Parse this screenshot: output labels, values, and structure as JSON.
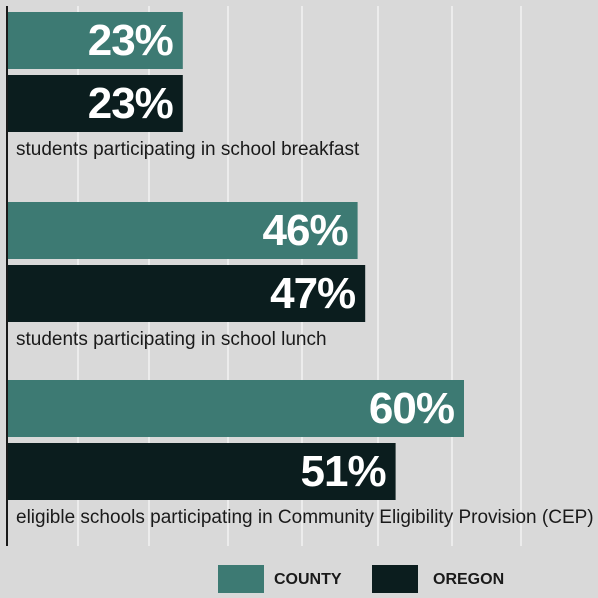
{
  "chart_data": {
    "type": "bar",
    "orientation": "horizontal",
    "categories": [
      "students participating in school breakfast",
      "students participating in school lunch",
      "eligible schools participating in Community Eligibility Provision (CEP)"
    ],
    "series": [
      {
        "name": "COUNTY",
        "values": [
          23,
          46,
          60
        ],
        "color": "#3d7a73"
      },
      {
        "name": "OREGON",
        "values": [
          23,
          47,
          51
        ],
        "color": "#0b1d1e"
      }
    ],
    "value_labels": [
      [
        "23%",
        "46%",
        "60%"
      ],
      [
        "23%",
        "47%",
        "51%"
      ]
    ],
    "xlim": [
      0,
      78
    ],
    "grid": true,
    "gridline_color": "#ffffff",
    "background": "#d9d9d9",
    "legend_position": "bottom"
  }
}
